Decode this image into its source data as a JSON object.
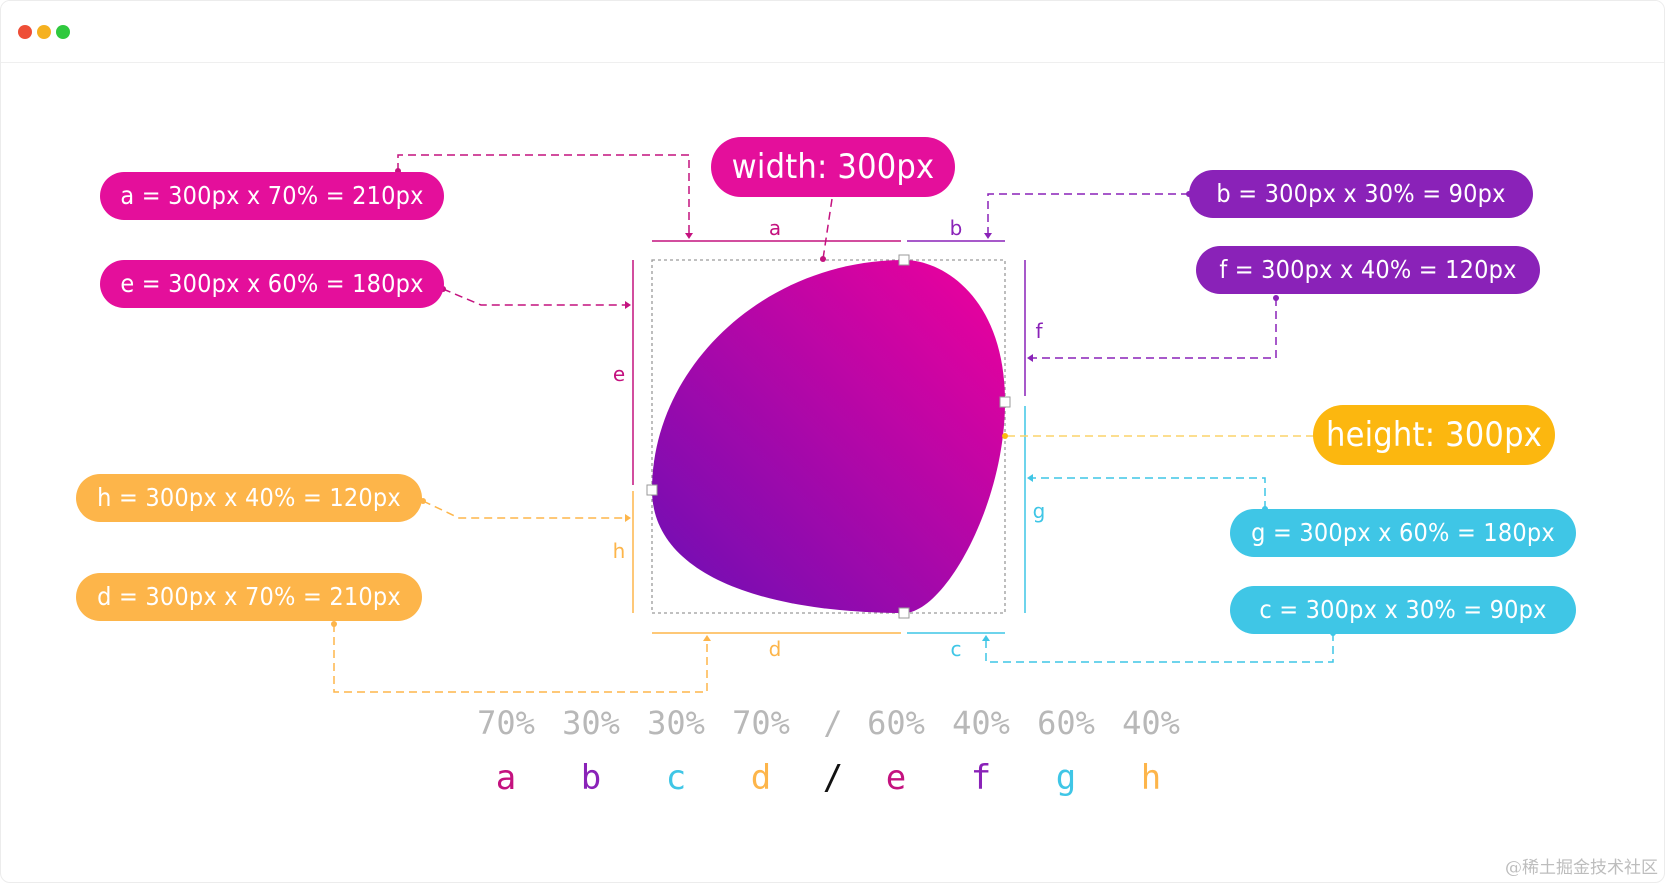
{
  "window_controls": {
    "colors": {
      "close": "#ee4e37",
      "minimize": "#f5b120",
      "maximize": "#2fc93e"
    }
  },
  "colors": {
    "magenta": "#e40f9b",
    "purple": "#8a22b8",
    "orange": "#fdb54a",
    "cyan": "#3fc6e6",
    "height_pill": "#fcb70f",
    "shape_gradient_start": "#6a0fb5",
    "shape_gradient_end": "#f0009c",
    "grey_text": "#b8b8b8"
  },
  "pills": {
    "width": "width: 300px",
    "height": "height: 300px",
    "a": "a = 300px x 70% = 210px",
    "b": "b = 300px x 30% = 90px",
    "c": "c = 300px x 30% = 90px",
    "d": "d = 300px x 70% = 210px",
    "e": "e = 300px x 60% = 180px",
    "f": "f = 300px x 40% = 120px",
    "g": "g = 300px x 60% = 180px",
    "h": "h = 300px x 40% = 120px"
  },
  "measure_labels": {
    "a": "a",
    "b": "b",
    "c": "c",
    "d": "d",
    "e": "e",
    "f": "f",
    "g": "g",
    "h": "h"
  },
  "percent_row": [
    "70%",
    "30%",
    "30%",
    "70%",
    "/",
    "60%",
    "40%",
    "60%",
    "40%"
  ],
  "letter_row": [
    "a",
    "b",
    "c",
    "d",
    "/",
    "e",
    "f",
    "g",
    "h"
  ],
  "watermark": "@稀土掘金技术社区"
}
